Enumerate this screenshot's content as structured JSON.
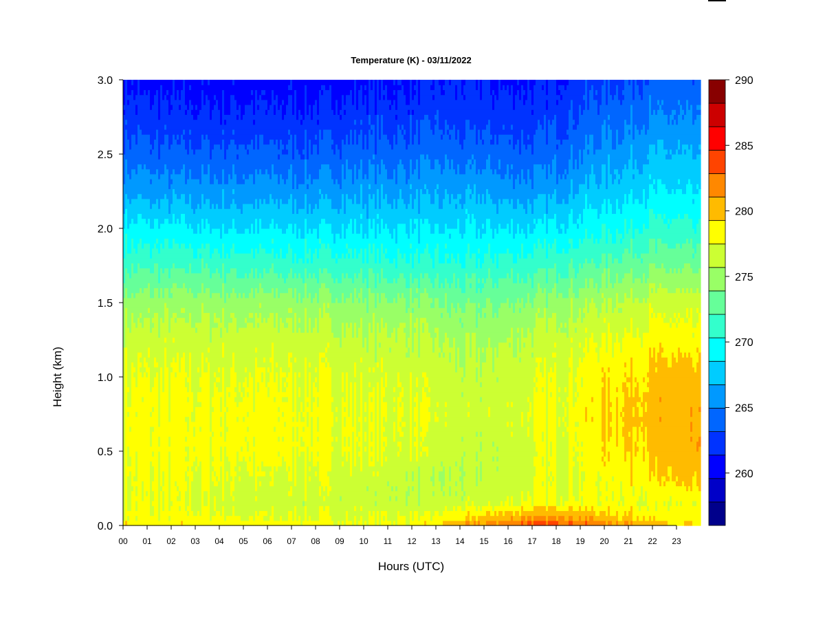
{
  "chart_data": {
    "type": "heatmap",
    "title": "Temperature (K) - 03/11/2022",
    "xlabel": "Hours (UTC)",
    "ylabel": "Height (km)",
    "x_ticks": [
      "00",
      "01",
      "02",
      "03",
      "04",
      "05",
      "06",
      "07",
      "08",
      "09",
      "10",
      "11",
      "12",
      "13",
      "14",
      "15",
      "16",
      "17",
      "18",
      "19",
      "20",
      "21",
      "22",
      "23"
    ],
    "y_ticks": [
      "0.0",
      "0.5",
      "1.0",
      "1.5",
      "2.0",
      "2.5",
      "3.0"
    ],
    "xlim": [
      0,
      24
    ],
    "ylim": [
      0,
      3.0
    ],
    "colorbar": {
      "ticks": [
        "260",
        "265",
        "270",
        "275",
        "280",
        "285",
        "290"
      ],
      "range": [
        256,
        290
      ],
      "levels": [
        256,
        258,
        260,
        262,
        264,
        266,
        268,
        270,
        272,
        274,
        276,
        278,
        280,
        282,
        284,
        286,
        288,
        290
      ],
      "colors": [
        "#00008b",
        "#0000c8",
        "#0000ff",
        "#0033ff",
        "#0066ff",
        "#0099ff",
        "#00ccff",
        "#00ffff",
        "#33ffcc",
        "#66ff99",
        "#99ff66",
        "#ccff33",
        "#ffff00",
        "#ffbb00",
        "#ff8800",
        "#ff4400",
        "#ff0000",
        "#cc0000",
        "#880000"
      ]
    },
    "legend": "right",
    "grid": false,
    "heights_km": [
      0.0,
      0.05,
      0.15,
      0.3,
      0.5,
      0.75,
      1.0,
      1.25,
      1.5,
      1.75,
      2.0,
      2.25,
      2.5,
      2.75,
      3.0
    ],
    "hours": [
      0,
      2,
      4,
      6,
      8,
      10,
      12,
      13,
      14,
      15,
      16,
      17,
      18,
      19,
      20,
      21,
      22,
      23,
      24
    ],
    "temperature_K": [
      [
        279.5,
        279.5,
        279.5,
        279.0,
        279.0,
        278.5,
        279.0,
        280.0,
        281.5,
        282.5,
        284.0,
        285.5,
        285.5,
        284.5,
        283.5,
        282.5,
        281.0,
        280.0,
        279.0
      ],
      [
        278.5,
        278.5,
        278.5,
        278.0,
        278.0,
        278.0,
        278.0,
        278.5,
        279.5,
        280.5,
        281.5,
        282.5,
        282.5,
        282.0,
        281.0,
        280.5,
        279.5,
        279.0,
        278.5
      ],
      [
        278.0,
        278.0,
        277.5,
        277.0,
        277.0,
        277.0,
        276.5,
        276.5,
        277.0,
        277.5,
        278.0,
        278.5,
        278.5,
        278.5,
        278.5,
        278.5,
        278.0,
        278.0,
        278.0
      ],
      [
        278.0,
        278.0,
        278.0,
        277.5,
        277.5,
        277.0,
        276.5,
        276.0,
        276.0,
        276.5,
        277.0,
        277.5,
        278.0,
        278.0,
        278.5,
        279.0,
        279.5,
        280.0,
        280.0
      ],
      [
        278.5,
        278.5,
        278.5,
        278.5,
        278.5,
        278.0,
        277.5,
        277.0,
        276.5,
        276.5,
        277.0,
        277.5,
        278.0,
        278.5,
        279.5,
        280.0,
        280.5,
        281.0,
        281.0
      ],
      [
        278.5,
        278.5,
        278.5,
        278.5,
        278.5,
        278.0,
        278.0,
        277.5,
        277.0,
        277.0,
        277.5,
        278.0,
        278.5,
        279.0,
        280.0,
        280.5,
        281.0,
        281.0,
        281.0
      ],
      [
        278.0,
        278.0,
        278.0,
        278.0,
        278.0,
        277.5,
        277.5,
        277.0,
        276.5,
        276.5,
        277.0,
        277.5,
        278.0,
        278.5,
        279.5,
        280.0,
        280.5,
        281.0,
        280.5
      ],
      [
        277.0,
        277.0,
        277.0,
        277.0,
        277.0,
        276.5,
        276.5,
        276.0,
        275.5,
        275.5,
        276.0,
        276.5,
        277.0,
        277.5,
        278.0,
        278.5,
        279.0,
        279.0,
        278.5
      ],
      [
        275.0,
        275.0,
        275.0,
        275.0,
        275.0,
        274.5,
        274.5,
        274.0,
        273.5,
        273.5,
        274.0,
        274.5,
        275.0,
        275.5,
        276.0,
        276.5,
        277.0,
        277.0,
        276.5
      ],
      [
        271.5,
        271.5,
        271.5,
        271.0,
        271.0,
        271.0,
        270.5,
        270.5,
        270.5,
        270.5,
        271.0,
        271.0,
        271.5,
        272.0,
        272.5,
        273.0,
        273.5,
        273.5,
        273.0
      ],
      [
        268.5,
        268.5,
        268.0,
        268.0,
        268.0,
        268.0,
        268.0,
        268.0,
        268.0,
        268.0,
        268.0,
        268.0,
        268.5,
        269.0,
        269.5,
        270.0,
        270.5,
        270.5,
        270.0
      ],
      [
        265.5,
        265.0,
        265.0,
        265.0,
        265.0,
        265.5,
        265.5,
        265.5,
        265.5,
        265.5,
        265.0,
        265.0,
        265.5,
        266.5,
        267.0,
        267.5,
        268.0,
        268.0,
        267.5
      ],
      [
        263.0,
        262.5,
        262.5,
        262.5,
        262.5,
        263.0,
        263.0,
        263.5,
        263.0,
        263.0,
        263.0,
        262.5,
        263.0,
        264.0,
        265.0,
        265.5,
        266.0,
        266.0,
        265.5
      ],
      [
        261.0,
        260.5,
        260.5,
        260.5,
        260.5,
        261.0,
        261.0,
        261.5,
        261.0,
        261.0,
        261.0,
        261.0,
        261.5,
        262.5,
        263.0,
        263.5,
        264.0,
        264.0,
        263.5
      ],
      [
        259.5,
        259.0,
        259.0,
        259.0,
        259.0,
        259.5,
        259.5,
        260.0,
        260.0,
        260.0,
        259.5,
        259.5,
        260.0,
        261.0,
        261.5,
        262.0,
        262.5,
        262.5,
        262.0
      ]
    ]
  }
}
